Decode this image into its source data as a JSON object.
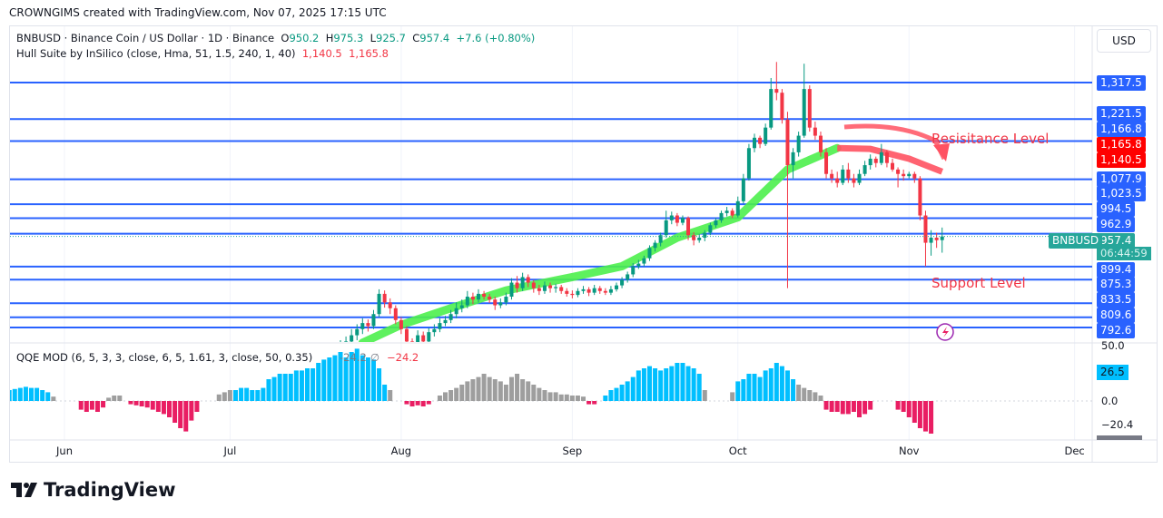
{
  "credit": "CROWNGIMS created with TradingView.com, Nov 07, 2025 17:15 UTC",
  "legend": {
    "symbol": "BNBUSD · Binance Coin / US Dollar · 1D · Binance",
    "o_label": "O",
    "o": "950.2",
    "h_label": "H",
    "h": "975.3",
    "l_label": "L",
    "l": "925.7",
    "c_label": "C",
    "c": "957.4",
    "change": "+7.6 (+0.80%)",
    "hull": "Hull Suite by InSilico (close, Hma, 51, 1.5, 240, 1, 40)",
    "hull_v1": "1,140.5",
    "hull_v2": "1,165.8",
    "qqe": "QQE MOD (6, 5, 3, 3, close, 6, 5, 1.61, 3, close, 50, 0.35)",
    "qqe_v1": "-24.2",
    "qqe_sym": "∅",
    "qqe_v2": "−24.2"
  },
  "currency": "USD",
  "price_labels": [
    {
      "text": "1,317.5",
      "color": "#2962ff"
    },
    {
      "text": "1,221.5",
      "color": "#2962ff"
    },
    {
      "text": "1,166.8",
      "color": "#2962ff"
    },
    {
      "text": "1,165.8",
      "color": "#ff0000"
    },
    {
      "text": "1,140.5",
      "color": "#ff0000"
    },
    {
      "text": "1,077.9",
      "color": "#2962ff"
    },
    {
      "text": "1,023.5",
      "color": "#2962ff"
    },
    {
      "text": "994.5",
      "color": "#2962ff"
    },
    {
      "text": "962.9",
      "color": "#2962ff"
    },
    {
      "text": "957.4",
      "color": "#26a69a"
    },
    {
      "text": "899.4",
      "color": "#2962ff"
    },
    {
      "text": "875.3",
      "color": "#2962ff"
    },
    {
      "text": "833.5",
      "color": "#2962ff"
    },
    {
      "text": "809.6",
      "color": "#2962ff"
    },
    {
      "text": "792.6",
      "color": "#2962ff"
    }
  ],
  "countdown": "06:44:59",
  "symbol_tag": "BNBUSD",
  "qqe_axis": {
    "top": "50.0",
    "current": "26.5",
    "zero": "0.0",
    "low": "−20.4"
  },
  "annotations": {
    "resistance": "Resisitance Level",
    "support": "Support Level"
  },
  "months": [
    {
      "label": "Jun",
      "date": "2025-06-01"
    },
    {
      "label": "Jul",
      "date": "2025-07-01"
    },
    {
      "label": "Aug",
      "date": "2025-08-01"
    },
    {
      "label": "Sep",
      "date": "2025-09-01"
    },
    {
      "label": "Oct",
      "date": "2025-10-01"
    },
    {
      "label": "Nov",
      "date": "2025-11-01"
    },
    {
      "label": "Dec",
      "date": "2025-12-01"
    }
  ],
  "brand": "TradingView",
  "chart_data": {
    "type": "candlestick",
    "price_scale": "log",
    "colors": {
      "up": "#089981",
      "down": "#f23645",
      "hull_up": "#4cf04c",
      "hull_down": "#ff5262",
      "level": "#2962ff",
      "qqe_blue": "#00bfff",
      "qqe_gray": "#9e9e9e",
      "qqe_pink": "#e91e63"
    },
    "levels": [
      1317.5,
      1221.5,
      1166.8,
      1077.9,
      1023.5,
      994.5,
      962.9,
      899.4,
      875.3,
      833.5,
      809.6,
      792.6
    ],
    "last_price": 957.4,
    "candles": {
      "from": "2025-07-18",
      "ohlc": [
        [
          735,
          752,
          730,
          745
        ],
        [
          745,
          758,
          740,
          752
        ],
        [
          752,
          766,
          746,
          760
        ],
        [
          760,
          772,
          752,
          765
        ],
        [
          765,
          778,
          758,
          770
        ],
        [
          770,
          790,
          762,
          780
        ],
        [
          780,
          798,
          772,
          790
        ],
        [
          790,
          808,
          782,
          800
        ],
        [
          800,
          806,
          786,
          795
        ],
        [
          795,
          822,
          790,
          815
        ],
        [
          815,
          858,
          810,
          850
        ],
        [
          850,
          856,
          826,
          835
        ],
        [
          835,
          842,
          815,
          825
        ],
        [
          825,
          830,
          798,
          805
        ],
        [
          805,
          810,
          782,
          790
        ],
        [
          790,
          795,
          762,
          770
        ],
        [
          770,
          775,
          755,
          765
        ],
        [
          765,
          788,
          760,
          780
        ],
        [
          780,
          786,
          762,
          770
        ],
        [
          770,
          792,
          765,
          785
        ],
        [
          785,
          798,
          778,
          790
        ],
        [
          790,
          808,
          785,
          800
        ],
        [
          800,
          812,
          795,
          805
        ],
        [
          805,
          822,
          800,
          815
        ],
        [
          815,
          835,
          808,
          825
        ],
        [
          825,
          840,
          818,
          830
        ],
        [
          830,
          855,
          825,
          845
        ],
        [
          845,
          852,
          832,
          840
        ],
        [
          840,
          858,
          835,
          850
        ],
        [
          850,
          855,
          840,
          845
        ],
        [
          845,
          850,
          834,
          840
        ],
        [
          840,
          845,
          822,
          830
        ],
        [
          830,
          842,
          825,
          835
        ],
        [
          835,
          852,
          830,
          845
        ],
        [
          845,
          878,
          840,
          870
        ],
        [
          870,
          882,
          852,
          860
        ],
        [
          860,
          888,
          855,
          880
        ],
        [
          880,
          885,
          862,
          870
        ],
        [
          870,
          875,
          852,
          860
        ],
        [
          860,
          866,
          848,
          855
        ],
        [
          855,
          872,
          850,
          865
        ],
        [
          865,
          870,
          852,
          860
        ],
        [
          860,
          868,
          852,
          862
        ],
        [
          862,
          866,
          850,
          855
        ],
        [
          855,
          860,
          845,
          850
        ],
        [
          850,
          856,
          842,
          848
        ],
        [
          848,
          860,
          844,
          855
        ],
        [
          855,
          864,
          850,
          858
        ],
        [
          858,
          862,
          846,
          852
        ],
        [
          852,
          866,
          848,
          860
        ],
        [
          860,
          864,
          850,
          855
        ],
        [
          855,
          860,
          848,
          852
        ],
        [
          852,
          864,
          848,
          858
        ],
        [
          858,
          870,
          854,
          865
        ],
        [
          865,
          880,
          860,
          875
        ],
        [
          875,
          890,
          870,
          885
        ],
        [
          885,
          906,
          880,
          900
        ],
        [
          900,
          912,
          895,
          905
        ],
        [
          905,
          920,
          900,
          915
        ],
        [
          915,
          940,
          910,
          935
        ],
        [
          935,
          950,
          928,
          945
        ],
        [
          945,
          965,
          938,
          960
        ],
        [
          960,
          1010,
          955,
          990
        ],
        [
          990,
          1008,
          982,
          1000
        ],
        [
          1000,
          1005,
          978,
          985
        ],
        [
          985,
          1000,
          980,
          995
        ],
        [
          995,
          998,
          950,
          960
        ],
        [
          960,
          966,
          940,
          950
        ],
        [
          950,
          962,
          945,
          955
        ],
        [
          955,
          970,
          948,
          965
        ],
        [
          965,
          985,
          960,
          980
        ],
        [
          980,
          995,
          975,
          990
        ],
        [
          990,
          1010,
          985,
          1005
        ],
        [
          1005,
          1018,
          998,
          1010
        ],
        [
          1010,
          1015,
          995,
          1000
        ],
        [
          1000,
          1040,
          996,
          1030
        ],
        [
          1030,
          1090,
          1025,
          1080
        ],
        [
          1080,
          1160,
          1075,
          1150
        ],
        [
          1150,
          1185,
          1140,
          1175
        ],
        [
          1175,
          1180,
          1150,
          1160
        ],
        [
          1160,
          1210,
          1155,
          1200
        ],
        [
          1200,
          1330,
          1195,
          1300
        ],
        [
          1300,
          1375,
          1270,
          1290
        ],
        [
          1290,
          1300,
          1210,
          1220
        ],
        [
          1220,
          1240,
          860,
          1110
        ],
        [
          1110,
          1150,
          1080,
          1140
        ],
        [
          1140,
          1190,
          1130,
          1180
        ],
        [
          1180,
          1370,
          1175,
          1300
        ],
        [
          1300,
          1310,
          1190,
          1200
        ],
        [
          1200,
          1215,
          1170,
          1180
        ],
        [
          1180,
          1190,
          1130,
          1140
        ],
        [
          1140,
          1150,
          1080,
          1090
        ],
        [
          1090,
          1100,
          1070,
          1080
        ],
        [
          1080,
          1095,
          1060,
          1070
        ],
        [
          1070,
          1110,
          1065,
          1100
        ],
        [
          1100,
          1115,
          1070,
          1080
        ],
        [
          1080,
          1090,
          1060,
          1070
        ],
        [
          1070,
          1100,
          1065,
          1090
        ],
        [
          1090,
          1120,
          1085,
          1110
        ],
        [
          1110,
          1135,
          1100,
          1125
        ],
        [
          1125,
          1130,
          1105,
          1115
        ],
        [
          1115,
          1160,
          1110,
          1140
        ],
        [
          1140,
          1145,
          1105,
          1115
        ],
        [
          1115,
          1125,
          1095,
          1100
        ],
        [
          1100,
          1105,
          1060,
          1090
        ],
        [
          1090,
          1100,
          1075,
          1085
        ],
        [
          1085,
          1095,
          1080,
          1090
        ],
        [
          1090,
          1095,
          1070,
          1080
        ],
        [
          1080,
          1085,
          990,
          1000
        ],
        [
          1000,
          1010,
          900,
          945
        ],
        [
          945,
          970,
          920,
          955
        ],
        [
          955,
          965,
          935,
          950
        ],
        [
          950.2,
          975.3,
          925.7,
          957.4
        ]
      ]
    },
    "hull": [
      [
        "2025-07-25",
        768
      ],
      [
        "2025-08-01",
        797
      ],
      [
        "2025-08-10",
        825
      ],
      [
        "2025-08-20",
        856
      ],
      [
        "2025-09-01",
        880
      ],
      [
        "2025-09-10",
        900
      ],
      [
        "2025-09-20",
        955
      ],
      [
        "2025-10-01",
        996
      ],
      [
        "2025-10-10",
        1100
      ],
      [
        "2025-10-19",
        1150
      ],
      [
        "2025-10-25",
        1148
      ],
      [
        "2025-11-01",
        1125
      ],
      [
        "2025-11-07",
        1095
      ]
    ],
    "hull_turn": "2025-10-19",
    "qqe": [
      {
        "from": "2025-05-18",
        "color": "blue",
        "values": [
          15,
          12,
          12,
          10,
          10,
          11,
          12,
          13,
          12,
          12,
          10,
          8
        ]
      },
      {
        "from": "2025-05-30",
        "color": "gray",
        "values": [
          4
        ]
      },
      {
        "from": "2025-06-04",
        "color": "pink",
        "values": [
          -8,
          -10,
          -8,
          -10,
          -6
        ]
      },
      {
        "from": "2025-06-09",
        "color": "gray",
        "values": [
          3,
          5,
          5
        ]
      },
      {
        "from": "2025-06-13",
        "color": "pink",
        "values": [
          -3,
          -4,
          -5,
          -6,
          -8,
          -10,
          -12,
          -15,
          -20,
          -25,
          -28,
          -18,
          -10
        ]
      },
      {
        "from": "2025-06-29",
        "color": "gray",
        "values": [
          6,
          8,
          10
        ]
      },
      {
        "from": "2025-07-02",
        "color": "blue",
        "values": [
          10,
          12,
          12,
          10,
          10,
          12,
          20,
          22,
          25,
          25,
          25,
          28,
          28,
          30,
          30,
          35,
          38,
          40,
          42,
          45,
          40,
          45,
          48,
          42,
          40,
          38,
          30,
          15
        ]
      },
      {
        "from": "2025-07-30",
        "color": "gray",
        "values": [
          10
        ]
      },
      {
        "from": "2025-08-02",
        "color": "pink",
        "values": [
          -3,
          -5,
          -4,
          -5,
          -3
        ]
      },
      {
        "from": "2025-08-08",
        "color": "gray",
        "values": [
          5,
          8,
          10,
          12,
          15,
          18,
          20,
          22,
          25,
          22,
          20,
          18,
          15,
          22,
          25,
          20,
          18,
          15,
          12,
          10,
          8,
          8,
          6,
          6,
          5,
          5,
          4
        ]
      },
      {
        "from": "2025-09-04",
        "color": "pink",
        "values": [
          -3,
          -3
        ]
      },
      {
        "from": "2025-09-07",
        "color": "blue",
        "values": [
          5,
          10,
          12,
          15,
          18,
          22,
          28,
          30,
          32,
          30,
          28,
          30,
          32,
          35,
          35,
          32,
          30,
          25
        ]
      },
      {
        "from": "2025-09-25",
        "color": "gray",
        "values": [
          10
        ]
      },
      {
        "from": "2025-09-30",
        "color": "gray",
        "values": [
          8
        ]
      },
      {
        "from": "2025-10-01",
        "color": "blue",
        "values": [
          18,
          20,
          25,
          25,
          22,
          28,
          30,
          35,
          32,
          28,
          20
        ]
      },
      {
        "from": "2025-10-12",
        "color": "gray",
        "values": [
          15,
          12,
          10,
          8,
          5
        ]
      },
      {
        "from": "2025-10-17",
        "color": "pink",
        "values": [
          -8,
          -10,
          -10,
          -12,
          -12,
          -10,
          -15,
          -12,
          -8
        ]
      },
      {
        "from": "2025-10-30",
        "color": "pink",
        "values": [
          -8,
          -10,
          -15,
          -20,
          -25,
          -28,
          -30
        ]
      }
    ]
  }
}
